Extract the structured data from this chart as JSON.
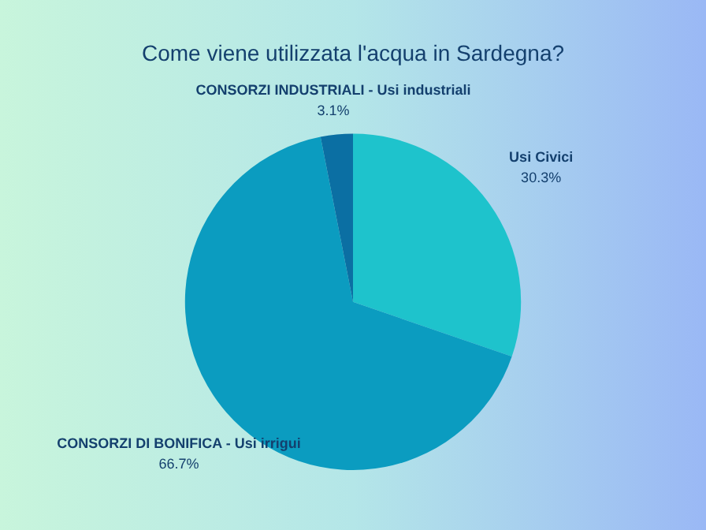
{
  "chart_data": {
    "type": "pie",
    "title": "Come viene utilizzata l'acqua in Sardegna?",
    "categories": [
      "Usi Civici",
      "CONSORZI DI BONIFICA - Usi irrigui",
      "CONSORZI INDUSTRIALI - Usi industriali"
    ],
    "values": [
      30.3,
      66.7,
      3.1
    ],
    "colors": [
      "#1ec3cc",
      "#0b9cc0",
      "#0b6fa3"
    ],
    "value_labels": [
      "30.3%",
      "66.7%",
      "3.1%"
    ],
    "legend": false
  }
}
